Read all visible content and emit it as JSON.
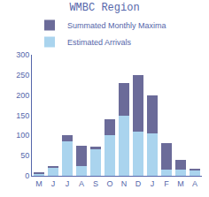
{
  "chart_data": {
    "type": "bar",
    "title": "WMBC Region",
    "categories": [
      "M",
      "J",
      "J",
      "A",
      "S",
      "O",
      "N",
      "D",
      "J",
      "F",
      "M",
      "A"
    ],
    "series": [
      {
        "name": "Estimated Arrivals",
        "color": "#aad4ee",
        "values": [
          5,
          20,
          85,
          25,
          65,
          100,
          150,
          110,
          105,
          15,
          15,
          15
        ]
      },
      {
        "name": "Summated Monthly Maxima",
        "color": "#6b6b99",
        "values": [
          3,
          2,
          15,
          50,
          7,
          40,
          80,
          140,
          95,
          65,
          25,
          3
        ]
      }
    ],
    "stacked": true,
    "ylim": [
      0,
      300
    ],
    "yticks": [
      0,
      50,
      100,
      150,
      200,
      250,
      300
    ],
    "legend": "upper left",
    "grid": false
  }
}
